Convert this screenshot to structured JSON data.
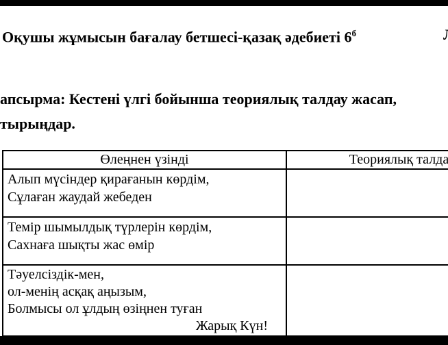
{
  "page": {
    "background_color": "#ffffff",
    "text_color": "#000000",
    "letterbox_color": "#000000",
    "border_color": "#000000"
  },
  "header": {
    "title": "Оқушы жұмысын бағалау бетшесі-қазақ әдебиеті 6",
    "title_superscript": "б",
    "cutoff_letter": "Л"
  },
  "task": {
    "line1": "апсырма: Кестені үлгі бойынша теориялық талдау жасап,",
    "line2": "тырыңдар."
  },
  "table": {
    "columns": [
      {
        "header": "Өлеңнен үзінді"
      },
      {
        "header": "Теориялық талдау"
      }
    ],
    "rows": [
      {
        "excerpt_lines": [
          "Алып мүсіндер қирағанын көрдім,",
          "Сұлаған жаудай жебеден"
        ],
        "analysis": ""
      },
      {
        "excerpt_lines": [
          "Темір шымылдық түрлерін көрдім,",
          "Сахнаға шықты жас өмір"
        ],
        "analysis": ""
      },
      {
        "excerpt_lines": [
          "Тәуелсіздік-мен,",
          "ол-менің асқақ аңызым,",
          "Болмысы ол ұлдың өзіңнен туған"
        ],
        "excerpt_tail": "Жарық Күн!",
        "analysis": ""
      }
    ]
  }
}
